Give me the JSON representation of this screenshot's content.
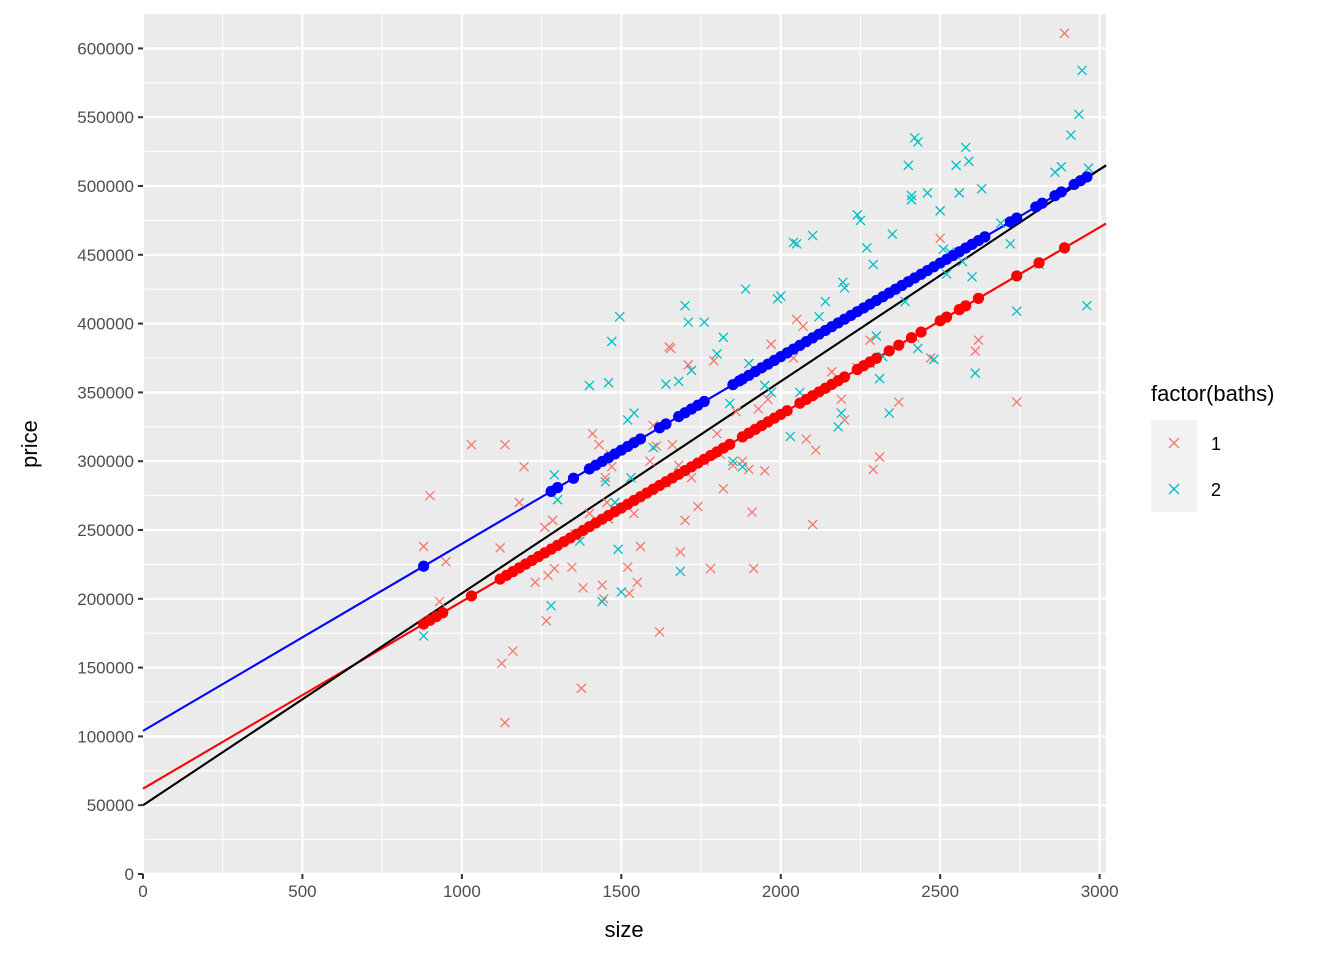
{
  "chart_data": {
    "type": "scatter",
    "xlabel": "size",
    "ylabel": "price",
    "xlim": [
      0,
      3020
    ],
    "ylim": [
      0,
      625000
    ],
    "x_ticks": [
      0,
      500,
      1000,
      1500,
      2000,
      2500,
      3000
    ],
    "x_tick_labels": [
      "0",
      "500",
      "1000",
      "1500",
      "2000",
      "2500",
      "3000"
    ],
    "y_ticks": [
      0,
      50000,
      100000,
      150000,
      200000,
      250000,
      300000,
      350000,
      400000,
      450000,
      500000,
      550000,
      600000
    ],
    "y_tick_labels": [
      "0",
      "50000",
      "100000",
      "150000",
      "200000",
      "250000",
      "300000",
      "350000",
      "400000",
      "450000",
      "500000",
      "550000",
      "600000"
    ],
    "grid": true,
    "legend": {
      "title": "factor(baths)",
      "position": "right",
      "entries": [
        {
          "label": "1",
          "color": "#F8766D"
        },
        {
          "label": "2",
          "color": "#00BFC4"
        }
      ]
    },
    "series": [
      {
        "name": "1",
        "kind": "observed",
        "marker": "x",
        "color": "#F8766D",
        "points": [
          [
            880,
            238000
          ],
          [
            900,
            275000
          ],
          [
            930,
            198000
          ],
          [
            950,
            227000
          ],
          [
            1030,
            312000
          ],
          [
            1120,
            237000
          ],
          [
            1125,
            153000
          ],
          [
            1135,
            312000
          ],
          [
            1135,
            110000
          ],
          [
            1160,
            162000
          ],
          [
            1180,
            270000
          ],
          [
            1195,
            296000
          ],
          [
            1230,
            212000
          ],
          [
            1260,
            252000
          ],
          [
            1265,
            184000
          ],
          [
            1270,
            217000
          ],
          [
            1285,
            257000
          ],
          [
            1290,
            222000
          ],
          [
            1345,
            223000
          ],
          [
            1355,
            247000
          ],
          [
            1375,
            135000
          ],
          [
            1380,
            208000
          ],
          [
            1400,
            262000
          ],
          [
            1410,
            320000
          ],
          [
            1430,
            312000
          ],
          [
            1440,
            210000
          ],
          [
            1445,
            200000
          ],
          [
            1450,
            288000
          ],
          [
            1455,
            270000
          ],
          [
            1460,
            258000
          ],
          [
            1465,
            305000
          ],
          [
            1470,
            296000
          ],
          [
            1520,
            223000
          ],
          [
            1525,
            204000
          ],
          [
            1540,
            262000
          ],
          [
            1550,
            212000
          ],
          [
            1560,
            238000
          ],
          [
            1590,
            300000
          ],
          [
            1600,
            326000
          ],
          [
            1610,
            311000
          ],
          [
            1620,
            176000
          ],
          [
            1640,
            284000
          ],
          [
            1650,
            383000
          ],
          [
            1655,
            382000
          ],
          [
            1660,
            312000
          ],
          [
            1680,
            297000
          ],
          [
            1685,
            234000
          ],
          [
            1700,
            257000
          ],
          [
            1710,
            370000
          ],
          [
            1720,
            288000
          ],
          [
            1740,
            267000
          ],
          [
            1760,
            300000
          ],
          [
            1780,
            222000
          ],
          [
            1790,
            373000
          ],
          [
            1800,
            320000
          ],
          [
            1810,
            305000
          ],
          [
            1820,
            280000
          ],
          [
            1850,
            297000
          ],
          [
            1860,
            336000
          ],
          [
            1880,
            300000
          ],
          [
            1900,
            294000
          ],
          [
            1910,
            263000
          ],
          [
            1915,
            222000
          ],
          [
            1930,
            338000
          ],
          [
            1950,
            293000
          ],
          [
            1960,
            345000
          ],
          [
            1970,
            385000
          ],
          [
            2040,
            375000
          ],
          [
            2050,
            403000
          ],
          [
            2070,
            398000
          ],
          [
            2080,
            316000
          ],
          [
            2110,
            308000
          ],
          [
            2100,
            254000
          ],
          [
            2160,
            365000
          ],
          [
            2190,
            345000
          ],
          [
            2200,
            330000
          ],
          [
            2240,
            368000
          ],
          [
            2280,
            388000
          ],
          [
            2290,
            294000
          ],
          [
            2310,
            303000
          ],
          [
            2370,
            343000
          ],
          [
            2420,
            390000
          ],
          [
            2470,
            375000
          ],
          [
            2500,
            462000
          ],
          [
            2610,
            380000
          ],
          [
            2620,
            388000
          ],
          [
            2740,
            343000
          ],
          [
            2890,
            611000
          ]
        ]
      },
      {
        "name": "2",
        "kind": "observed",
        "marker": "x",
        "color": "#00BFC4",
        "points": [
          [
            880,
            173000
          ],
          [
            1280,
            195000
          ],
          [
            1290,
            290000
          ],
          [
            1300,
            272000
          ],
          [
            1370,
            242000
          ],
          [
            1400,
            355000
          ],
          [
            1440,
            198000
          ],
          [
            1450,
            285000
          ],
          [
            1460,
            357000
          ],
          [
            1470,
            387000
          ],
          [
            1480,
            270000
          ],
          [
            1490,
            236000
          ],
          [
            1495,
            405000
          ],
          [
            1500,
            205000
          ],
          [
            1520,
            330000
          ],
          [
            1530,
            288000
          ],
          [
            1540,
            335000
          ],
          [
            1600,
            310000
          ],
          [
            1640,
            356000
          ],
          [
            1680,
            358000
          ],
          [
            1685,
            220000
          ],
          [
            1700,
            413000
          ],
          [
            1710,
            401000
          ],
          [
            1720,
            366000
          ],
          [
            1760,
            401000
          ],
          [
            1800,
            378000
          ],
          [
            1820,
            390000
          ],
          [
            1840,
            342000
          ],
          [
            1850,
            300000
          ],
          [
            1880,
            296000
          ],
          [
            1890,
            425000
          ],
          [
            1900,
            371000
          ],
          [
            1950,
            355000
          ],
          [
            1970,
            350000
          ],
          [
            1990,
            418000
          ],
          [
            2000,
            420000
          ],
          [
            2030,
            318000
          ],
          [
            2040,
            459000
          ],
          [
            2050,
            458000
          ],
          [
            2060,
            350000
          ],
          [
            2100,
            464000
          ],
          [
            2120,
            405000
          ],
          [
            2140,
            416000
          ],
          [
            2180,
            325000
          ],
          [
            2190,
            335000
          ],
          [
            2195,
            430000
          ],
          [
            2200,
            426000
          ],
          [
            2240,
            479000
          ],
          [
            2250,
            475000
          ],
          [
            2270,
            455000
          ],
          [
            2280,
            371000
          ],
          [
            2290,
            443000
          ],
          [
            2300,
            391000
          ],
          [
            2310,
            360000
          ],
          [
            2320,
            376000
          ],
          [
            2340,
            335000
          ],
          [
            2350,
            465000
          ],
          [
            2390,
            416000
          ],
          [
            2400,
            515000
          ],
          [
            2410,
            493000
          ],
          [
            2410,
            490000
          ],
          [
            2420,
            535000
          ],
          [
            2430,
            532000
          ],
          [
            2430,
            382000
          ],
          [
            2460,
            495000
          ],
          [
            2480,
            374000
          ],
          [
            2500,
            482000
          ],
          [
            2510,
            454000
          ],
          [
            2520,
            436000
          ],
          [
            2530,
            452000
          ],
          [
            2550,
            515000
          ],
          [
            2560,
            495000
          ],
          [
            2570,
            445000
          ],
          [
            2580,
            528000
          ],
          [
            2590,
            518000
          ],
          [
            2600,
            434000
          ],
          [
            2610,
            364000
          ],
          [
            2630,
            498000
          ],
          [
            2690,
            473000
          ],
          [
            2720,
            458000
          ],
          [
            2740,
            409000
          ],
          [
            2810,
            443000
          ],
          [
            2860,
            510000
          ],
          [
            2880,
            514000
          ],
          [
            2910,
            537000
          ],
          [
            2935,
            552000
          ],
          [
            2945,
            584000
          ],
          [
            2960,
            413000
          ],
          [
            2965,
            513000
          ]
        ]
      },
      {
        "name": "fitted-1",
        "kind": "fitted",
        "marker": "dot",
        "color": "#FF0000",
        "x": [
          880,
          900,
          920,
          940,
          1030,
          1120,
          1140,
          1160,
          1180,
          1200,
          1220,
          1240,
          1260,
          1280,
          1300,
          1320,
          1340,
          1360,
          1380,
          1400,
          1420,
          1440,
          1460,
          1480,
          1500,
          1520,
          1540,
          1560,
          1580,
          1600,
          1620,
          1640,
          1660,
          1680,
          1700,
          1720,
          1740,
          1760,
          1780,
          1800,
          1820,
          1840,
          1880,
          1900,
          1920,
          1940,
          1960,
          1980,
          2000,
          2020,
          2060,
          2080,
          2100,
          2120,
          2140,
          2160,
          2180,
          2200,
          2240,
          2260,
          2280,
          2300,
          2340,
          2370,
          2410,
          2440,
          2500,
          2520,
          2560,
          2580,
          2620,
          2740,
          2810,
          2890
        ]
      },
      {
        "name": "fitted-2",
        "kind": "fitted",
        "marker": "dot",
        "color": "#0000FF",
        "x": [
          880,
          1280,
          1300,
          1350,
          1400,
          1420,
          1440,
          1460,
          1480,
          1500,
          1520,
          1540,
          1560,
          1620,
          1640,
          1680,
          1700,
          1720,
          1740,
          1760,
          1850,
          1870,
          1880,
          1900,
          1920,
          1940,
          1960,
          1980,
          2000,
          2020,
          2040,
          2060,
          2080,
          2100,
          2120,
          2140,
          2160,
          2180,
          2200,
          2220,
          2240,
          2260,
          2280,
          2300,
          2320,
          2340,
          2360,
          2380,
          2400,
          2420,
          2440,
          2460,
          2480,
          2500,
          2520,
          2540,
          2560,
          2580,
          2600,
          2620,
          2640,
          2720,
          2740,
          2800,
          2820,
          2860,
          2880,
          2920,
          2940,
          2960
        ]
      }
    ],
    "regression_lines": [
      {
        "name": "baths-1-fit",
        "color": "#FF0000",
        "intercept": 62000,
        "slope": 136
      },
      {
        "name": "baths-2-fit",
        "color": "#0000FF",
        "intercept": 104000,
        "slope": 136
      },
      {
        "name": "overall-fit",
        "color": "#000000",
        "intercept": 50000,
        "slope": 154
      }
    ]
  }
}
